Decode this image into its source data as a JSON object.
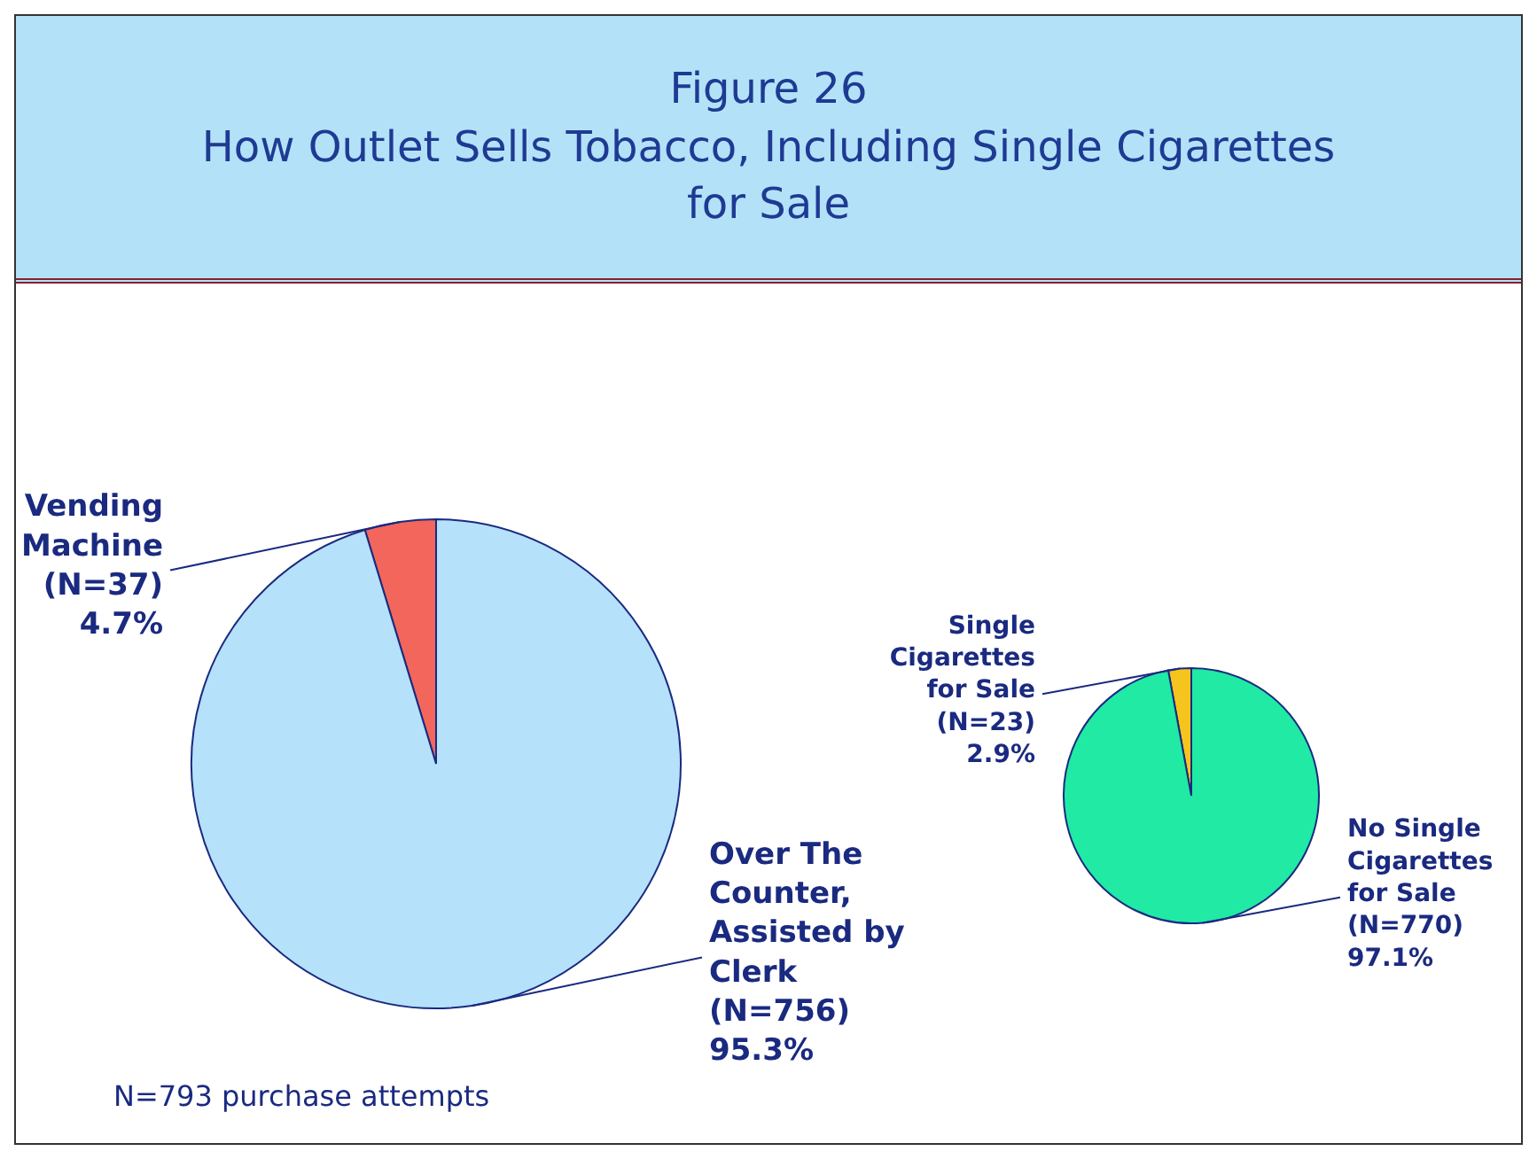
{
  "chart_data": [
    {
      "type": "pie",
      "title": "Figure 26\nHow Outlet Sells Tobacco, Including Single Cigarettes\nfor Sale",
      "categories": [
        "Vending Machine",
        "Over The Counter, Assisted by Clerk"
      ],
      "values": [
        4.7,
        95.3
      ],
      "colors": [
        "#f2665c",
        "#b5e1fa"
      ],
      "value_labels": [
        "(N=37)\n4.7%",
        "(N=756)\n95.3%"
      ],
      "annotations": [
        "N=793 purchase attempts"
      ]
    },
    {
      "type": "pie",
      "categories": [
        "Single Cigarettes for Sale",
        "No Single Cigarettes for Sale"
      ],
      "values": [
        2.9,
        97.1
      ],
      "colors": [
        "#f5c51e",
        "#20eaa4"
      ],
      "value_labels": [
        "(N=23)\n2.9%",
        "(N=770)\n97.1%"
      ]
    }
  ]
}
